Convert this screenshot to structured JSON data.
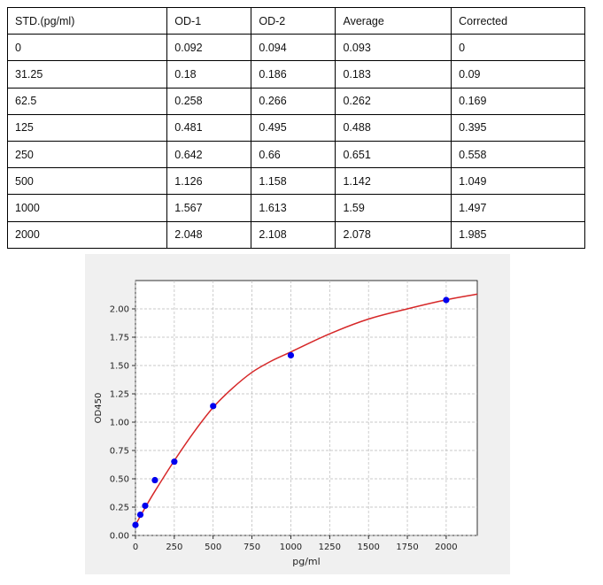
{
  "table": {
    "headers": [
      "STD.(pg/ml)",
      "OD-1",
      "OD-2",
      "Average",
      "Corrected"
    ],
    "rows": [
      [
        "0",
        "0.092",
        "0.094",
        "0.093",
        "0"
      ],
      [
        "31.25",
        "0.18",
        "0.186",
        "0.183",
        "0.09"
      ],
      [
        "62.5",
        "0.258",
        "0.266",
        "0.262",
        "0.169"
      ],
      [
        "125",
        "0.481",
        "0.495",
        "0.488",
        "0.395"
      ],
      [
        "250",
        "0.642",
        "0.66",
        "0.651",
        "0.558"
      ],
      [
        "500",
        "1.126",
        "1.158",
        "1.142",
        "1.049"
      ],
      [
        "1000",
        "1.567",
        "1.613",
        "1.59",
        "1.497"
      ],
      [
        "2000",
        "2.048",
        "2.108",
        "2.078",
        "1.985"
      ]
    ]
  },
  "chart_data": {
    "type": "scatter",
    "title": "",
    "xlabel": "pg/ml",
    "ylabel": "OD450",
    "xlim": [
      0,
      2200
    ],
    "ylim": [
      0,
      2.25
    ],
    "xticks": [
      0,
      250,
      500,
      750,
      1000,
      1250,
      1500,
      1750,
      2000
    ],
    "yticks": [
      0.0,
      0.25,
      0.5,
      0.75,
      1.0,
      1.25,
      1.5,
      1.75,
      2.0
    ],
    "xtick_labels": [
      "0",
      "250",
      "500",
      "750",
      "1000",
      "1250",
      "1500",
      "1750",
      "2000"
    ],
    "ytick_labels": [
      "0.00",
      "0.25",
      "0.50",
      "0.75",
      "1.00",
      "1.25",
      "1.50",
      "1.75",
      "2.00"
    ],
    "grid": true,
    "points": {
      "x": [
        0,
        31.25,
        62.5,
        125,
        250,
        500,
        1000,
        2000
      ],
      "y": [
        0.093,
        0.183,
        0.262,
        0.488,
        0.651,
        1.142,
        1.59,
        2.078
      ],
      "color": "#0000ee"
    },
    "fit_curve": {
      "x": [
        0,
        31.25,
        62.5,
        125,
        250,
        375,
        500,
        625,
        750,
        875,
        1000,
        1250,
        1500,
        1750,
        2000,
        2200
      ],
      "y": [
        0.093,
        0.17,
        0.245,
        0.39,
        0.66,
        0.91,
        1.13,
        1.3,
        1.44,
        1.54,
        1.62,
        1.78,
        1.91,
        2.0,
        2.08,
        2.13
      ],
      "color": "#d62728"
    }
  }
}
